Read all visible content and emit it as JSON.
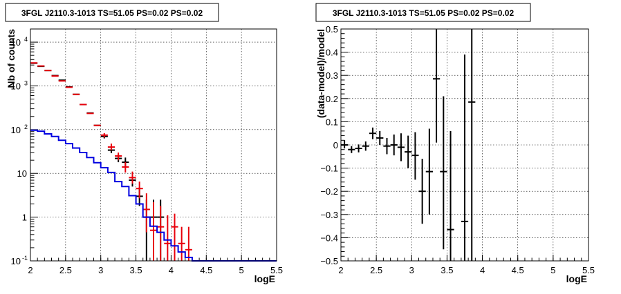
{
  "chart_data": [
    {
      "type": "line",
      "title": "3FGL J2110.3-1013 TS=51.05 PS=0.02 PS=0.02",
      "xlabel": "logE",
      "ylabel": "Nb of counts",
      "xlim": [
        2,
        5.5
      ],
      "ylim": [
        0.1,
        20000
      ],
      "yscale": "log",
      "grid": true,
      "xticks": [
        "2",
        "2.5",
        "3",
        "3.5",
        "4",
        "4.5",
        "5",
        "5.5"
      ],
      "yticks": [
        {
          "value": 0.1,
          "label": "10",
          "exp": "-1"
        },
        {
          "value": 1,
          "label": "1",
          "exp": ""
        },
        {
          "value": 10,
          "label": "10",
          "exp": ""
        },
        {
          "value": 100,
          "label": "10",
          "exp": "2"
        },
        {
          "value": 1000,
          "label": "10",
          "exp": "3"
        },
        {
          "value": 10000,
          "label": "10",
          "exp": "4"
        }
      ],
      "colors": {
        "data": "#000000",
        "model": "#e8000b",
        "component": "#0000e0"
      },
      "series": [
        {
          "style": "errorbar",
          "color": "#000000",
          "points": [
            {
              "x": 2.05,
              "y": 3300,
              "lo": 3300,
              "hi": 3300
            },
            {
              "x": 2.15,
              "y": 2800,
              "lo": 2800,
              "hi": 2800
            },
            {
              "x": 2.25,
              "y": 2250,
              "lo": 2250,
              "hi": 2250
            },
            {
              "x": 2.35,
              "y": 1720,
              "lo": 1720,
              "hi": 1720
            },
            {
              "x": 2.45,
              "y": 1350,
              "lo": 1350,
              "hi": 1350
            },
            {
              "x": 2.55,
              "y": 950,
              "lo": 950,
              "hi": 950
            },
            {
              "x": 2.65,
              "y": 640,
              "lo": 640,
              "hi": 640
            },
            {
              "x": 2.75,
              "y": 375,
              "lo": 375,
              "hi": 375
            },
            {
              "x": 2.85,
              "y": 240,
              "lo": 240,
              "hi": 240
            },
            {
              "x": 2.95,
              "y": 125,
              "lo": 125,
              "hi": 125
            },
            {
              "x": 3.05,
              "y": 70,
              "lo": 63,
              "hi": 78
            },
            {
              "x": 3.15,
              "y": 34,
              "lo": 29,
              "hi": 40
            },
            {
              "x": 3.25,
              "y": 22,
              "lo": 18,
              "hi": 27
            },
            {
              "x": 3.35,
              "y": 18,
              "lo": 14,
              "hi": 23
            },
            {
              "x": 3.45,
              "y": 7,
              "lo": 5,
              "hi": 10
            },
            {
              "x": 3.55,
              "y": 3,
              "lo": 1.8,
              "hi": 4.8
            },
            {
              "x": 3.65,
              "y": 1,
              "lo": 0.1,
              "hi": 2.5
            },
            {
              "x": 3.75,
              "y": 1,
              "lo": 0.1,
              "hi": 2.5
            },
            {
              "x": 3.85,
              "y": 1,
              "lo": 0.1,
              "hi": 2.5
            }
          ]
        },
        {
          "style": "errorbar",
          "color": "#e8000b",
          "points": [
            {
              "x": 2.05,
              "y": 3350,
              "lo": 3350,
              "hi": 3350
            },
            {
              "x": 2.15,
              "y": 2850,
              "lo": 2850,
              "hi": 2850
            },
            {
              "x": 2.25,
              "y": 2250,
              "lo": 2250,
              "hi": 2250
            },
            {
              "x": 2.35,
              "y": 1680,
              "lo": 1680,
              "hi": 1680
            },
            {
              "x": 2.45,
              "y": 1300,
              "lo": 1300,
              "hi": 1300
            },
            {
              "x": 2.55,
              "y": 930,
              "lo": 930,
              "hi": 930
            },
            {
              "x": 2.65,
              "y": 640,
              "lo": 640,
              "hi": 640
            },
            {
              "x": 2.75,
              "y": 375,
              "lo": 375,
              "hi": 375
            },
            {
              "x": 2.85,
              "y": 235,
              "lo": 235,
              "hi": 235
            },
            {
              "x": 2.95,
              "y": 125,
              "lo": 125,
              "hi": 125
            },
            {
              "x": 3.05,
              "y": 75,
              "lo": 66,
              "hi": 83
            },
            {
              "x": 3.15,
              "y": 40,
              "lo": 34,
              "hi": 48
            },
            {
              "x": 3.25,
              "y": 25,
              "lo": 20,
              "hi": 30
            },
            {
              "x": 3.35,
              "y": 14,
              "lo": 10.5,
              "hi": 18
            },
            {
              "x": 3.45,
              "y": 8,
              "lo": 5.8,
              "hi": 11
            },
            {
              "x": 3.55,
              "y": 4.5,
              "lo": 2.7,
              "hi": 6.5
            },
            {
              "x": 3.65,
              "y": 1.5,
              "lo": 0.45,
              "hi": 3.5
            },
            {
              "x": 3.75,
              "y": 0.5,
              "lo": 0.1,
              "hi": 2.2
            },
            {
              "x": 3.85,
              "y": 0.6,
              "lo": 0.1,
              "hi": 1.8
            },
            {
              "x": 3.95,
              "y": 0.25,
              "lo": 0.1,
              "hi": 1.1
            },
            {
              "x": 4.05,
              "y": 0.6,
              "lo": 0.1,
              "hi": 1.2
            },
            {
              "x": 4.15,
              "y": 0.25,
              "lo": 0.1,
              "hi": 0.6
            },
            {
              "x": 4.25,
              "y": 0.18,
              "lo": 0.1,
              "hi": 0.6
            }
          ]
        },
        {
          "style": "step",
          "color": "#0000e0",
          "edges": [
            2.0,
            2.1,
            2.2,
            2.3,
            2.4,
            2.5,
            2.6,
            2.7,
            2.8,
            2.9,
            3.0,
            3.1,
            3.2,
            3.3,
            3.4,
            3.5,
            3.6,
            3.7,
            3.8,
            3.9,
            4.0,
            4.1,
            4.2,
            4.3,
            5.5
          ],
          "values": [
            97,
            92,
            80,
            70,
            57,
            48,
            38,
            30,
            23,
            17.5,
            13.5,
            10.5,
            6.5,
            5,
            3.1,
            2,
            1,
            0.62,
            0.45,
            0.3,
            0.22,
            0.16,
            0.12,
            0.1
          ]
        }
      ]
    },
    {
      "type": "scatter",
      "title": "3FGL J2110.3-1013 TS=51.05 PS=0.02 PS=0.02",
      "xlabel": "logE",
      "ylabel": "(data-model)/model",
      "xlim": [
        2,
        5.5
      ],
      "ylim": [
        -0.5,
        0.5
      ],
      "grid": true,
      "xticks": [
        "2",
        "2.5",
        "3",
        "3.5",
        "4",
        "4.5",
        "5",
        "5.5"
      ],
      "yticks": [
        "−0.5",
        "−0.4",
        "−0.3",
        "−0.2",
        "−0.1",
        "0",
        "0.1",
        "0.2",
        "0.3",
        "0.4",
        "0.5"
      ],
      "points": [
        {
          "x": 2.05,
          "y": 0.0,
          "lo": -0.015,
          "hi": 0.02
        },
        {
          "x": 2.15,
          "y": -0.02,
          "lo": -0.035,
          "hi": -0.005
        },
        {
          "x": 2.25,
          "y": -0.015,
          "lo": -0.032,
          "hi": 0.002
        },
        {
          "x": 2.35,
          "y": -0.005,
          "lo": -0.025,
          "hi": 0.015
        },
        {
          "x": 2.45,
          "y": 0.05,
          "lo": 0.025,
          "hi": 0.075
        },
        {
          "x": 2.55,
          "y": 0.03,
          "lo": 0.0,
          "hi": 0.06
        },
        {
          "x": 2.65,
          "y": -0.005,
          "lo": -0.04,
          "hi": 0.03
        },
        {
          "x": 2.75,
          "y": 0.0,
          "lo": -0.045,
          "hi": 0.045
        },
        {
          "x": 2.85,
          "y": -0.01,
          "lo": -0.07,
          "hi": 0.05
        },
        {
          "x": 2.95,
          "y": -0.03,
          "lo": -0.1,
          "hi": 0.04
        },
        {
          "x": 3.05,
          "y": -0.045,
          "lo": -0.15,
          "hi": 0.055
        },
        {
          "x": 3.15,
          "y": -0.2,
          "lo": -0.34,
          "hi": -0.06
        },
        {
          "x": 3.25,
          "y": -0.115,
          "lo": -0.3,
          "hi": 0.07
        },
        {
          "x": 3.35,
          "y": 0.285,
          "lo": 0.01,
          "hi": 0.56
        },
        {
          "x": 3.45,
          "y": -0.115,
          "lo": -0.45,
          "hi": 0.21
        },
        {
          "x": 3.55,
          "y": -0.365,
          "lo": -0.56,
          "hi": 0.06
        },
        {
          "x": 3.75,
          "y": -0.33,
          "lo": -0.56,
          "hi": 0.39
        },
        {
          "x": 3.85,
          "y": 0.185,
          "lo": -0.56,
          "hi": 0.56
        }
      ]
    }
  ]
}
